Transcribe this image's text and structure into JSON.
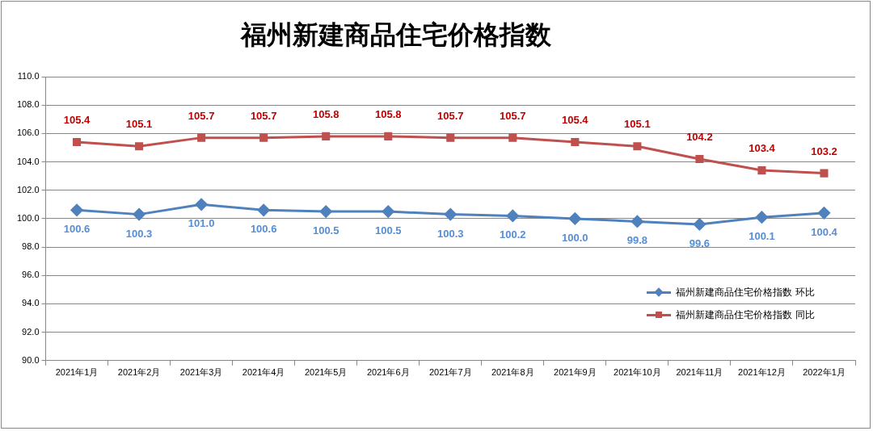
{
  "chart_data": {
    "type": "line",
    "title": "福州新建商品住宅价格指数",
    "categories": [
      "2021年1月",
      "2021年2月",
      "2021年3月",
      "2021年4月",
      "2021年5月",
      "2021年6月",
      "2021年7月",
      "2021年8月",
      "2021年9月",
      "2021年10月",
      "2021年11月",
      "2021年12月",
      "2022年1月"
    ],
    "series": [
      {
        "name": "福州新建商品住宅价格指数 环比",
        "color": "#4f81bd",
        "marker": "diamond",
        "values": [
          100.6,
          100.3,
          101.0,
          100.6,
          100.5,
          100.5,
          100.3,
          100.2,
          100.0,
          99.8,
          99.6,
          100.1,
          100.4
        ],
        "value_labels": [
          "100.6",
          "100.3",
          "101.0",
          "100.6",
          "100.5",
          "100.5",
          "100.3",
          "100.2",
          "100.0",
          "99.8",
          "99.6",
          "100.1",
          "100.4"
        ]
      },
      {
        "name": "福州新建商品住宅价格指数 同比",
        "color": "#c0504d",
        "marker": "square",
        "values": [
          105.4,
          105.1,
          105.7,
          105.7,
          105.8,
          105.8,
          105.7,
          105.7,
          105.4,
          105.1,
          104.2,
          103.4,
          103.2
        ],
        "value_labels": [
          "105.4",
          "105.1",
          "105.7",
          "105.7",
          "105.8",
          "105.8",
          "105.7",
          "105.7",
          "105.4",
          "105.1",
          "104.2",
          "103.4",
          "103.2"
        ]
      }
    ],
    "ylim": [
      90,
      110
    ],
    "yticks": [
      {
        "value": 90,
        "label": "90.0"
      },
      {
        "value": 92,
        "label": "92.0"
      },
      {
        "value": 94,
        "label": "94.0"
      },
      {
        "value": 96,
        "label": "96.0"
      },
      {
        "value": 98,
        "label": "98.0"
      },
      {
        "value": 100,
        "label": "100.0"
      },
      {
        "value": 102,
        "label": "102.0"
      },
      {
        "value": 104,
        "label": "104.0"
      },
      {
        "value": 106,
        "label": "106.0"
      },
      {
        "value": 108,
        "label": "108.0"
      },
      {
        "value": 110,
        "label": "110.0"
      }
    ],
    "grid": "y",
    "legend": "right",
    "line_style": "solid"
  }
}
